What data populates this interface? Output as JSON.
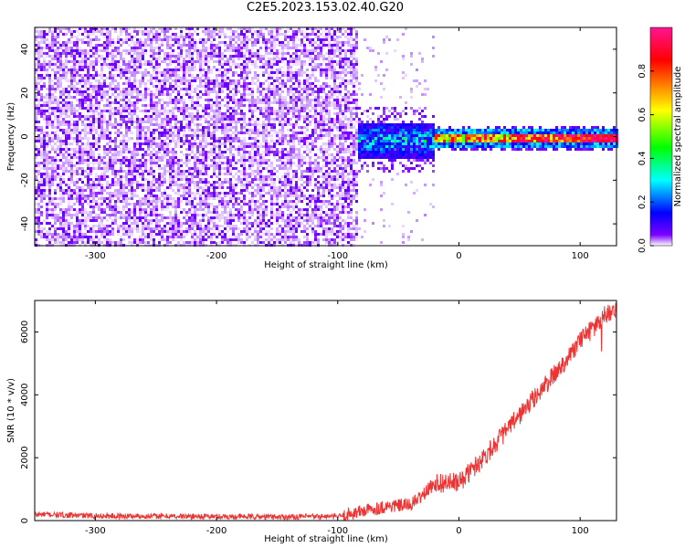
{
  "title": "C2E5.2023.153.02.40.G20",
  "chart_data": [
    {
      "type": "heatmap",
      "xlabel": "Height of straight line (km)",
      "ylabel": "Frequency (Hz)",
      "xlim": [
        -350,
        130
      ],
      "ylim": [
        -50,
        50
      ],
      "xticks": [
        -300,
        -200,
        -100,
        0,
        100
      ],
      "yticks": [
        -40,
        -20,
        0,
        20,
        40
      ],
      "grid": false,
      "colorbar": {
        "label": "Normalized spectral amplitude",
        "range": [
          0,
          1
        ],
        "ticks": [
          0.0,
          0.2,
          0.4,
          0.6,
          0.8
        ],
        "colormap": [
          "#ffffff",
          "#7b00ff",
          "#0000ff",
          "#00ffff",
          "#00ff00",
          "#ffff00",
          "#ff0000",
          "#ff1493"
        ]
      },
      "regions": [
        {
          "x_range": [
            -350,
            -85
          ],
          "frequency_range": [
            -50,
            50
          ],
          "amplitude": "0.0-0.2",
          "description": "broadband noise"
        },
        {
          "x_range": [
            -100,
            -20
          ],
          "frequency_range": [
            -15,
            10
          ],
          "amplitude": "0.2-0.6"
        },
        {
          "x_range": [
            -20,
            130
          ],
          "frequency_center": 0,
          "frequency_width": 4,
          "amplitude": "0.6-1.0"
        }
      ]
    },
    {
      "type": "line",
      "xlabel": "Height of straight line (km)",
      "ylabel": "SNR (10 * v/v)",
      "xlim": [
        -350,
        130
      ],
      "ylim": [
        0,
        7000
      ],
      "xticks": [
        -300,
        -200,
        -100,
        0,
        100
      ],
      "yticks": [
        0,
        2000,
        4000,
        6000
      ],
      "grid": false,
      "series": [
        {
          "color": "#ee3333",
          "x": [
            -350,
            -300,
            -250,
            -200,
            -150,
            -100,
            -80,
            -60,
            -40,
            -30,
            -20,
            -10,
            0,
            10,
            20,
            40,
            60,
            80,
            100,
            110,
            120,
            130
          ],
          "y": [
            200,
            150,
            140,
            130,
            120,
            130,
            300,
            450,
            500,
            800,
            1200,
            1200,
            1200,
            1600,
            2000,
            2900,
            3800,
            4700,
            5700,
            6100,
            6500,
            6800
          ]
        }
      ]
    }
  ]
}
